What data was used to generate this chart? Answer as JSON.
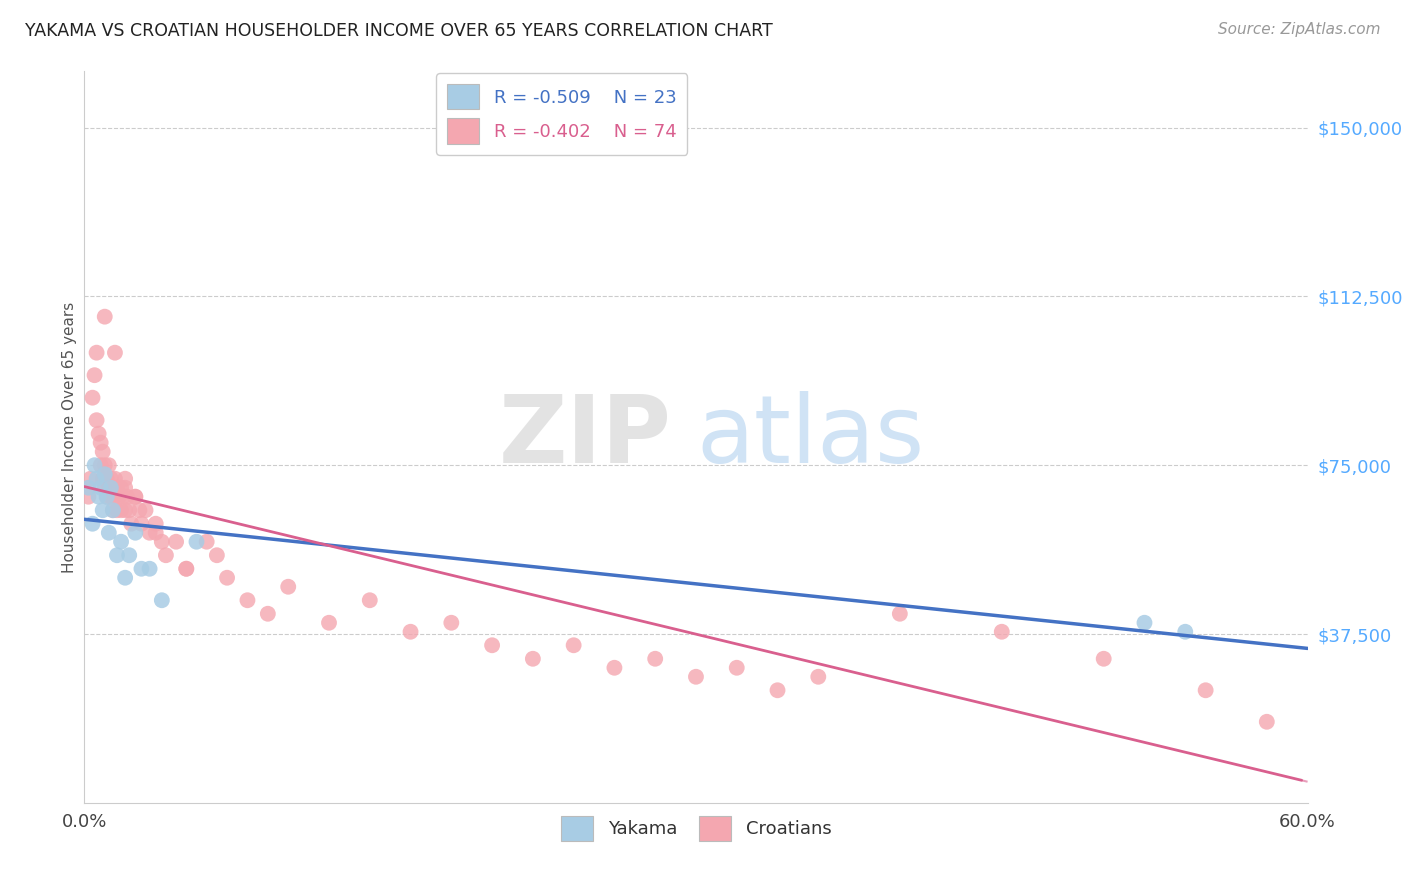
{
  "title": "YAKAMA VS CROATIAN HOUSEHOLDER INCOME OVER 65 YEARS CORRELATION CHART",
  "source": "Source: ZipAtlas.com",
  "ylabel": "Householder Income Over 65 years",
  "ytick_labels": [
    "$37,500",
    "$75,000",
    "$112,500",
    "$150,000"
  ],
  "ytick_values": [
    37500,
    75000,
    112500,
    150000
  ],
  "xlim": [
    0.0,
    0.6
  ],
  "ylim": [
    0,
    162500
  ],
  "background_color": "#ffffff",
  "watermark_zip": "ZIP",
  "watermark_atlas": "atlas",
  "legend_blue_R": "R = -0.509",
  "legend_blue_N": "N = 23",
  "legend_pink_R": "R = -0.402",
  "legend_pink_N": "N = 74",
  "blue_color": "#a8cce4",
  "pink_color": "#f4a7b0",
  "blue_line_color": "#4472c4",
  "pink_line_color": "#d95f8e",
  "yakama_x": [
    0.002,
    0.004,
    0.005,
    0.006,
    0.007,
    0.008,
    0.009,
    0.01,
    0.011,
    0.012,
    0.013,
    0.014,
    0.016,
    0.018,
    0.02,
    0.022,
    0.025,
    0.028,
    0.032,
    0.038,
    0.055,
    0.52,
    0.54
  ],
  "yakama_y": [
    70000,
    62000,
    75000,
    72000,
    68000,
    70000,
    65000,
    73000,
    68000,
    60000,
    70000,
    65000,
    55000,
    58000,
    50000,
    55000,
    60000,
    52000,
    52000,
    45000,
    58000,
    40000,
    38000
  ],
  "croatian_x": [
    0.002,
    0.003,
    0.004,
    0.005,
    0.006,
    0.007,
    0.008,
    0.008,
    0.009,
    0.009,
    0.01,
    0.01,
    0.011,
    0.011,
    0.012,
    0.012,
    0.013,
    0.013,
    0.014,
    0.014,
    0.015,
    0.015,
    0.016,
    0.016,
    0.017,
    0.018,
    0.018,
    0.019,
    0.02,
    0.02,
    0.021,
    0.022,
    0.023,
    0.025,
    0.027,
    0.028,
    0.03,
    0.032,
    0.035,
    0.038,
    0.04,
    0.045,
    0.05,
    0.06,
    0.065,
    0.07,
    0.08,
    0.09,
    0.1,
    0.12,
    0.14,
    0.16,
    0.18,
    0.2,
    0.22,
    0.24,
    0.26,
    0.28,
    0.3,
    0.32,
    0.34,
    0.36,
    0.4,
    0.45,
    0.5,
    0.55,
    0.58,
    0.006,
    0.01,
    0.015,
    0.02,
    0.025,
    0.035,
    0.05
  ],
  "croatian_y": [
    68000,
    72000,
    90000,
    95000,
    85000,
    82000,
    75000,
    80000,
    72000,
    78000,
    70000,
    75000,
    72000,
    68000,
    70000,
    75000,
    68000,
    72000,
    65000,
    70000,
    68000,
    72000,
    65000,
    70000,
    68000,
    65000,
    70000,
    68000,
    65000,
    70000,
    68000,
    65000,
    62000,
    68000,
    65000,
    62000,
    65000,
    60000,
    62000,
    58000,
    55000,
    58000,
    52000,
    58000,
    55000,
    50000,
    45000,
    42000,
    48000,
    40000,
    45000,
    38000,
    40000,
    35000,
    32000,
    35000,
    30000,
    32000,
    28000,
    30000,
    25000,
    28000,
    42000,
    38000,
    32000,
    25000,
    18000,
    100000,
    108000,
    100000,
    72000,
    68000,
    60000,
    52000
  ]
}
